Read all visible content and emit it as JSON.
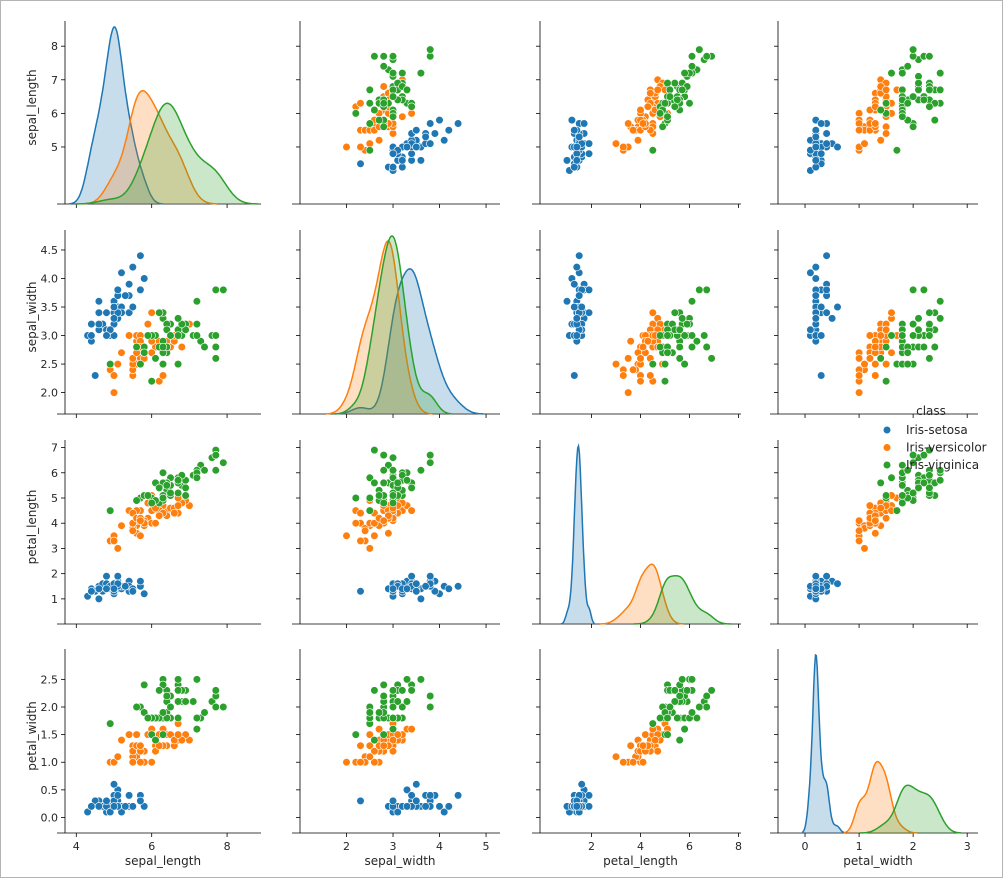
{
  "chart_data": {
    "type": "pairplot",
    "title": "",
    "variables": [
      "sepal_length",
      "sepal_width",
      "petal_length",
      "petal_width"
    ],
    "axis_labels": {
      "sepal_length": "sepal_length",
      "sepal_width": "sepal_width",
      "petal_length": "petal_length",
      "petal_width": "petal_width"
    },
    "ranges": {
      "sepal_length": [
        3.6,
        8.75
      ],
      "sepal_width": [
        1.8,
        4.85
      ],
      "petal_length": [
        0.4,
        7.3
      ],
      "petal_width": [
        -0.1,
        3.05
      ]
    },
    "ticks": {
      "sepal_length": [
        5,
        6,
        7,
        8
      ],
      "sepal_width": [
        2.0,
        2.5,
        3.0,
        3.5,
        4.0,
        4.5
      ],
      "petal_length": [
        1,
        2,
        3,
        4,
        5,
        6,
        7
      ],
      "petal_width": [
        0.0,
        0.5,
        1.0,
        1.5,
        2.0,
        2.5
      ]
    },
    "x_ticks": {
      "sepal_length": [
        4,
        6,
        8
      ],
      "sepal_width": [
        2,
        3,
        4,
        5
      ],
      "petal_length": [
        2,
        4,
        6,
        8
      ],
      "petal_width": [
        0,
        1,
        2,
        3
      ]
    },
    "x_ranges": {
      "sepal_length": [
        3.7,
        8.9
      ],
      "sepal_width": [
        1.0,
        5.3
      ],
      "petal_length": [
        -0.1,
        8.1
      ],
      "petal_width": [
        -0.5,
        3.2
      ]
    },
    "legend": {
      "title": "class",
      "position": "center-right",
      "entries": [
        "Iris-setosa",
        "Iris-versicolor",
        "Iris-virginica"
      ]
    },
    "series": [
      {
        "name": "Iris-setosa",
        "color": "#1f77b4",
        "data": [
          [
            5.1,
            3.5,
            1.4,
            0.2
          ],
          [
            4.9,
            3.0,
            1.4,
            0.2
          ],
          [
            4.7,
            3.2,
            1.3,
            0.2
          ],
          [
            4.6,
            3.1,
            1.5,
            0.2
          ],
          [
            5.0,
            3.6,
            1.4,
            0.2
          ],
          [
            5.4,
            3.9,
            1.7,
            0.4
          ],
          [
            4.6,
            3.4,
            1.4,
            0.3
          ],
          [
            5.0,
            3.4,
            1.5,
            0.2
          ],
          [
            4.4,
            2.9,
            1.4,
            0.2
          ],
          [
            4.9,
            3.1,
            1.5,
            0.1
          ],
          [
            5.4,
            3.7,
            1.5,
            0.2
          ],
          [
            4.8,
            3.4,
            1.6,
            0.2
          ],
          [
            4.8,
            3.0,
            1.4,
            0.1
          ],
          [
            4.3,
            3.0,
            1.1,
            0.1
          ],
          [
            5.8,
            4.0,
            1.2,
            0.2
          ],
          [
            5.7,
            4.4,
            1.5,
            0.4
          ],
          [
            5.4,
            3.9,
            1.3,
            0.4
          ],
          [
            5.1,
            3.5,
            1.4,
            0.3
          ],
          [
            5.7,
            3.8,
            1.7,
            0.3
          ],
          [
            5.1,
            3.8,
            1.5,
            0.3
          ],
          [
            5.4,
            3.4,
            1.7,
            0.2
          ],
          [
            5.1,
            3.7,
            1.5,
            0.4
          ],
          [
            4.6,
            3.6,
            1.0,
            0.2
          ],
          [
            5.1,
            3.3,
            1.7,
            0.5
          ],
          [
            4.8,
            3.4,
            1.9,
            0.2
          ],
          [
            5.0,
            3.0,
            1.6,
            0.2
          ],
          [
            5.0,
            3.4,
            1.6,
            0.4
          ],
          [
            5.2,
            3.5,
            1.5,
            0.2
          ],
          [
            5.2,
            3.4,
            1.4,
            0.2
          ],
          [
            4.7,
            3.2,
            1.6,
            0.2
          ],
          [
            4.8,
            3.1,
            1.6,
            0.2
          ],
          [
            5.4,
            3.4,
            1.5,
            0.4
          ],
          [
            5.2,
            4.1,
            1.5,
            0.1
          ],
          [
            5.5,
            4.2,
            1.4,
            0.2
          ],
          [
            4.9,
            3.1,
            1.5,
            0.1
          ],
          [
            5.0,
            3.2,
            1.2,
            0.2
          ],
          [
            5.5,
            3.5,
            1.3,
            0.2
          ],
          [
            4.9,
            3.1,
            1.5,
            0.1
          ],
          [
            4.4,
            3.0,
            1.3,
            0.2
          ],
          [
            5.1,
            3.4,
            1.5,
            0.2
          ],
          [
            5.0,
            3.5,
            1.3,
            0.3
          ],
          [
            4.5,
            2.3,
            1.3,
            0.3
          ],
          [
            4.4,
            3.2,
            1.3,
            0.2
          ],
          [
            5.0,
            3.5,
            1.6,
            0.6
          ],
          [
            5.1,
            3.8,
            1.9,
            0.4
          ],
          [
            4.8,
            3.0,
            1.4,
            0.3
          ],
          [
            5.1,
            3.8,
            1.6,
            0.2
          ],
          [
            4.6,
            3.2,
            1.4,
            0.2
          ],
          [
            5.3,
            3.7,
            1.5,
            0.2
          ],
          [
            5.0,
            3.3,
            1.4,
            0.2
          ]
        ]
      },
      {
        "name": "Iris-versicolor",
        "color": "#ff7f0e",
        "data": [
          [
            7.0,
            3.2,
            4.7,
            1.4
          ],
          [
            6.4,
            3.2,
            4.5,
            1.5
          ],
          [
            6.9,
            3.1,
            4.9,
            1.5
          ],
          [
            5.5,
            2.3,
            4.0,
            1.3
          ],
          [
            6.5,
            2.8,
            4.6,
            1.5
          ],
          [
            5.7,
            2.8,
            4.5,
            1.3
          ],
          [
            6.3,
            3.3,
            4.7,
            1.6
          ],
          [
            4.9,
            2.4,
            3.3,
            1.0
          ],
          [
            6.6,
            2.9,
            4.6,
            1.3
          ],
          [
            5.2,
            2.7,
            3.9,
            1.4
          ],
          [
            5.0,
            2.0,
            3.5,
            1.0
          ],
          [
            5.9,
            3.0,
            4.2,
            1.5
          ],
          [
            6.0,
            2.2,
            4.0,
            1.0
          ],
          [
            6.1,
            2.9,
            4.7,
            1.4
          ],
          [
            5.6,
            2.9,
            3.6,
            1.3
          ],
          [
            6.7,
            3.1,
            4.4,
            1.4
          ],
          [
            5.6,
            3.0,
            4.5,
            1.5
          ],
          [
            5.8,
            2.7,
            4.1,
            1.0
          ],
          [
            6.2,
            2.2,
            4.5,
            1.5
          ],
          [
            5.6,
            2.5,
            3.9,
            1.1
          ],
          [
            5.9,
            3.2,
            4.8,
            1.8
          ],
          [
            6.1,
            2.8,
            4.0,
            1.3
          ],
          [
            6.3,
            2.5,
            4.9,
            1.5
          ],
          [
            6.1,
            2.8,
            4.7,
            1.2
          ],
          [
            6.4,
            2.9,
            4.3,
            1.3
          ],
          [
            6.6,
            3.0,
            4.4,
            1.4
          ],
          [
            6.8,
            2.8,
            4.8,
            1.4
          ],
          [
            6.7,
            3.0,
            5.0,
            1.7
          ],
          [
            6.0,
            2.9,
            4.5,
            1.5
          ],
          [
            5.7,
            2.6,
            3.5,
            1.0
          ],
          [
            5.5,
            2.4,
            3.8,
            1.1
          ],
          [
            5.5,
            2.4,
            3.7,
            1.0
          ],
          [
            5.8,
            2.7,
            3.9,
            1.2
          ],
          [
            6.0,
            2.7,
            5.1,
            1.6
          ],
          [
            5.4,
            3.0,
            4.5,
            1.5
          ],
          [
            6.0,
            3.4,
            4.5,
            1.6
          ],
          [
            6.7,
            3.1,
            4.7,
            1.5
          ],
          [
            6.3,
            2.3,
            4.4,
            1.3
          ],
          [
            5.6,
            3.0,
            4.1,
            1.3
          ],
          [
            5.5,
            2.5,
            4.0,
            1.3
          ],
          [
            5.5,
            2.6,
            4.4,
            1.2
          ],
          [
            6.1,
            3.0,
            4.6,
            1.4
          ],
          [
            5.8,
            2.6,
            4.0,
            1.2
          ],
          [
            5.0,
            2.3,
            3.3,
            1.0
          ],
          [
            5.6,
            2.7,
            4.2,
            1.3
          ],
          [
            5.7,
            3.0,
            4.2,
            1.2
          ],
          [
            5.7,
            2.9,
            4.2,
            1.3
          ],
          [
            6.2,
            2.9,
            4.3,
            1.3
          ],
          [
            5.1,
            2.5,
            3.0,
            1.1
          ],
          [
            5.7,
            2.8,
            4.1,
            1.3
          ]
        ]
      },
      {
        "name": "Iris-virginica",
        "color": "#2ca02c",
        "data": [
          [
            6.3,
            3.3,
            6.0,
            2.5
          ],
          [
            5.8,
            2.7,
            5.1,
            1.9
          ],
          [
            7.1,
            3.0,
            5.9,
            2.1
          ],
          [
            6.3,
            2.9,
            5.6,
            1.8
          ],
          [
            6.5,
            3.0,
            5.8,
            2.2
          ],
          [
            7.6,
            3.0,
            6.6,
            2.1
          ],
          [
            4.9,
            2.5,
            4.5,
            1.7
          ],
          [
            7.3,
            2.9,
            6.3,
            1.8
          ],
          [
            6.7,
            2.5,
            5.8,
            1.8
          ],
          [
            7.2,
            3.6,
            6.1,
            2.5
          ],
          [
            6.5,
            3.2,
            5.1,
            2.0
          ],
          [
            6.4,
            2.7,
            5.3,
            1.9
          ],
          [
            6.8,
            3.0,
            5.5,
            2.1
          ],
          [
            5.7,
            2.5,
            5.0,
            2.0
          ],
          [
            5.8,
            2.8,
            5.1,
            2.4
          ],
          [
            6.4,
            3.2,
            5.3,
            2.3
          ],
          [
            6.5,
            3.0,
            5.5,
            1.8
          ],
          [
            7.7,
            3.8,
            6.7,
            2.2
          ],
          [
            7.7,
            2.6,
            6.9,
            2.3
          ],
          [
            6.0,
            2.2,
            5.0,
            1.5
          ],
          [
            6.9,
            3.2,
            5.7,
            2.3
          ],
          [
            5.6,
            2.8,
            4.9,
            2.0
          ],
          [
            7.7,
            2.8,
            6.7,
            2.0
          ],
          [
            6.3,
            2.7,
            4.9,
            1.8
          ],
          [
            6.7,
            3.3,
            5.7,
            2.1
          ],
          [
            7.2,
            3.2,
            6.0,
            1.8
          ],
          [
            6.2,
            2.8,
            4.8,
            1.8
          ],
          [
            6.1,
            3.0,
            4.9,
            1.8
          ],
          [
            6.4,
            2.8,
            5.6,
            2.1
          ],
          [
            7.2,
            3.0,
            5.8,
            1.6
          ],
          [
            7.4,
            2.8,
            6.1,
            1.9
          ],
          [
            7.9,
            3.8,
            6.4,
            2.0
          ],
          [
            6.4,
            2.8,
            5.6,
            2.2
          ],
          [
            6.3,
            2.8,
            5.1,
            1.5
          ],
          [
            6.1,
            2.6,
            5.6,
            1.4
          ],
          [
            7.7,
            3.0,
            6.1,
            2.3
          ],
          [
            6.3,
            3.4,
            5.6,
            2.4
          ],
          [
            6.4,
            3.1,
            5.5,
            1.8
          ],
          [
            6.0,
            3.0,
            4.8,
            1.8
          ],
          [
            6.9,
            3.1,
            5.4,
            2.1
          ],
          [
            6.7,
            3.1,
            5.6,
            2.4
          ],
          [
            6.9,
            3.1,
            5.1,
            2.3
          ],
          [
            5.8,
            2.7,
            5.1,
            1.9
          ],
          [
            6.8,
            3.2,
            5.9,
            2.3
          ],
          [
            6.7,
            3.3,
            5.7,
            2.5
          ],
          [
            6.7,
            3.0,
            5.2,
            2.3
          ],
          [
            6.3,
            2.5,
            5.0,
            1.9
          ],
          [
            6.5,
            3.0,
            5.2,
            2.0
          ],
          [
            6.2,
            3.4,
            5.4,
            2.3
          ],
          [
            5.9,
            3.0,
            5.1,
            1.8
          ]
        ]
      }
    ]
  }
}
